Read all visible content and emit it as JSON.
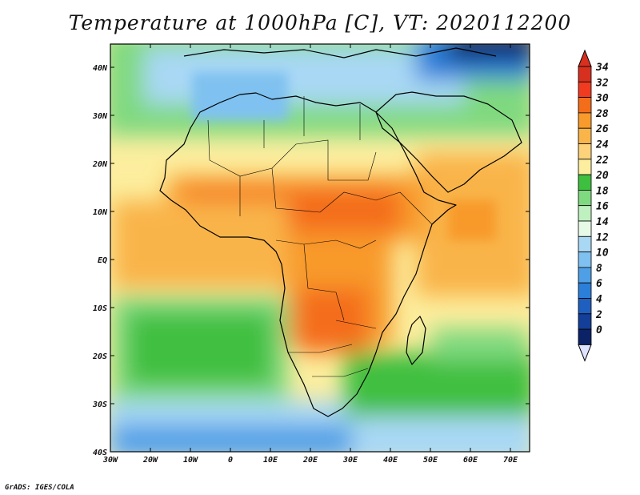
{
  "title": "Temperature at 1000hPa [C], VT: 2020112200",
  "credit": "GrADS: IGES/COLA",
  "map": {
    "lon_range": [
      -30,
      75
    ],
    "lat_range": [
      -40,
      45
    ],
    "lon_ticks": [
      "30W",
      "20W",
      "10W",
      "0",
      "10E",
      "20E",
      "30E",
      "40E",
      "50E",
      "60E",
      "70E"
    ],
    "lat_ticks": [
      "40N",
      "30N",
      "20N",
      "10N",
      "EQ",
      "10S",
      "20S",
      "30S",
      "40S"
    ]
  },
  "colorbar": {
    "labels": [
      "34",
      "32",
      "30",
      "28",
      "26",
      "24",
      "22",
      "20",
      "18",
      "16",
      "14",
      "12",
      "10",
      "8",
      "6",
      "4",
      "2",
      "0"
    ],
    "colors": [
      "#d7301f",
      "#f03b20",
      "#f46d1b",
      "#f89a2c",
      "#f9b44a",
      "#fcd27a",
      "#fcee9e",
      "#3fbf3f",
      "#7fd97f",
      "#bff0bf",
      "#e6fae6",
      "#a9d8f5",
      "#7fc1f0",
      "#4f9fe6",
      "#2c7fd9",
      "#1f5fbf",
      "#143f99",
      "#0b2266",
      "#dfe3ff"
    ],
    "top_color": "#d7301f",
    "bottom_color": "#dfe3ff"
  }
}
